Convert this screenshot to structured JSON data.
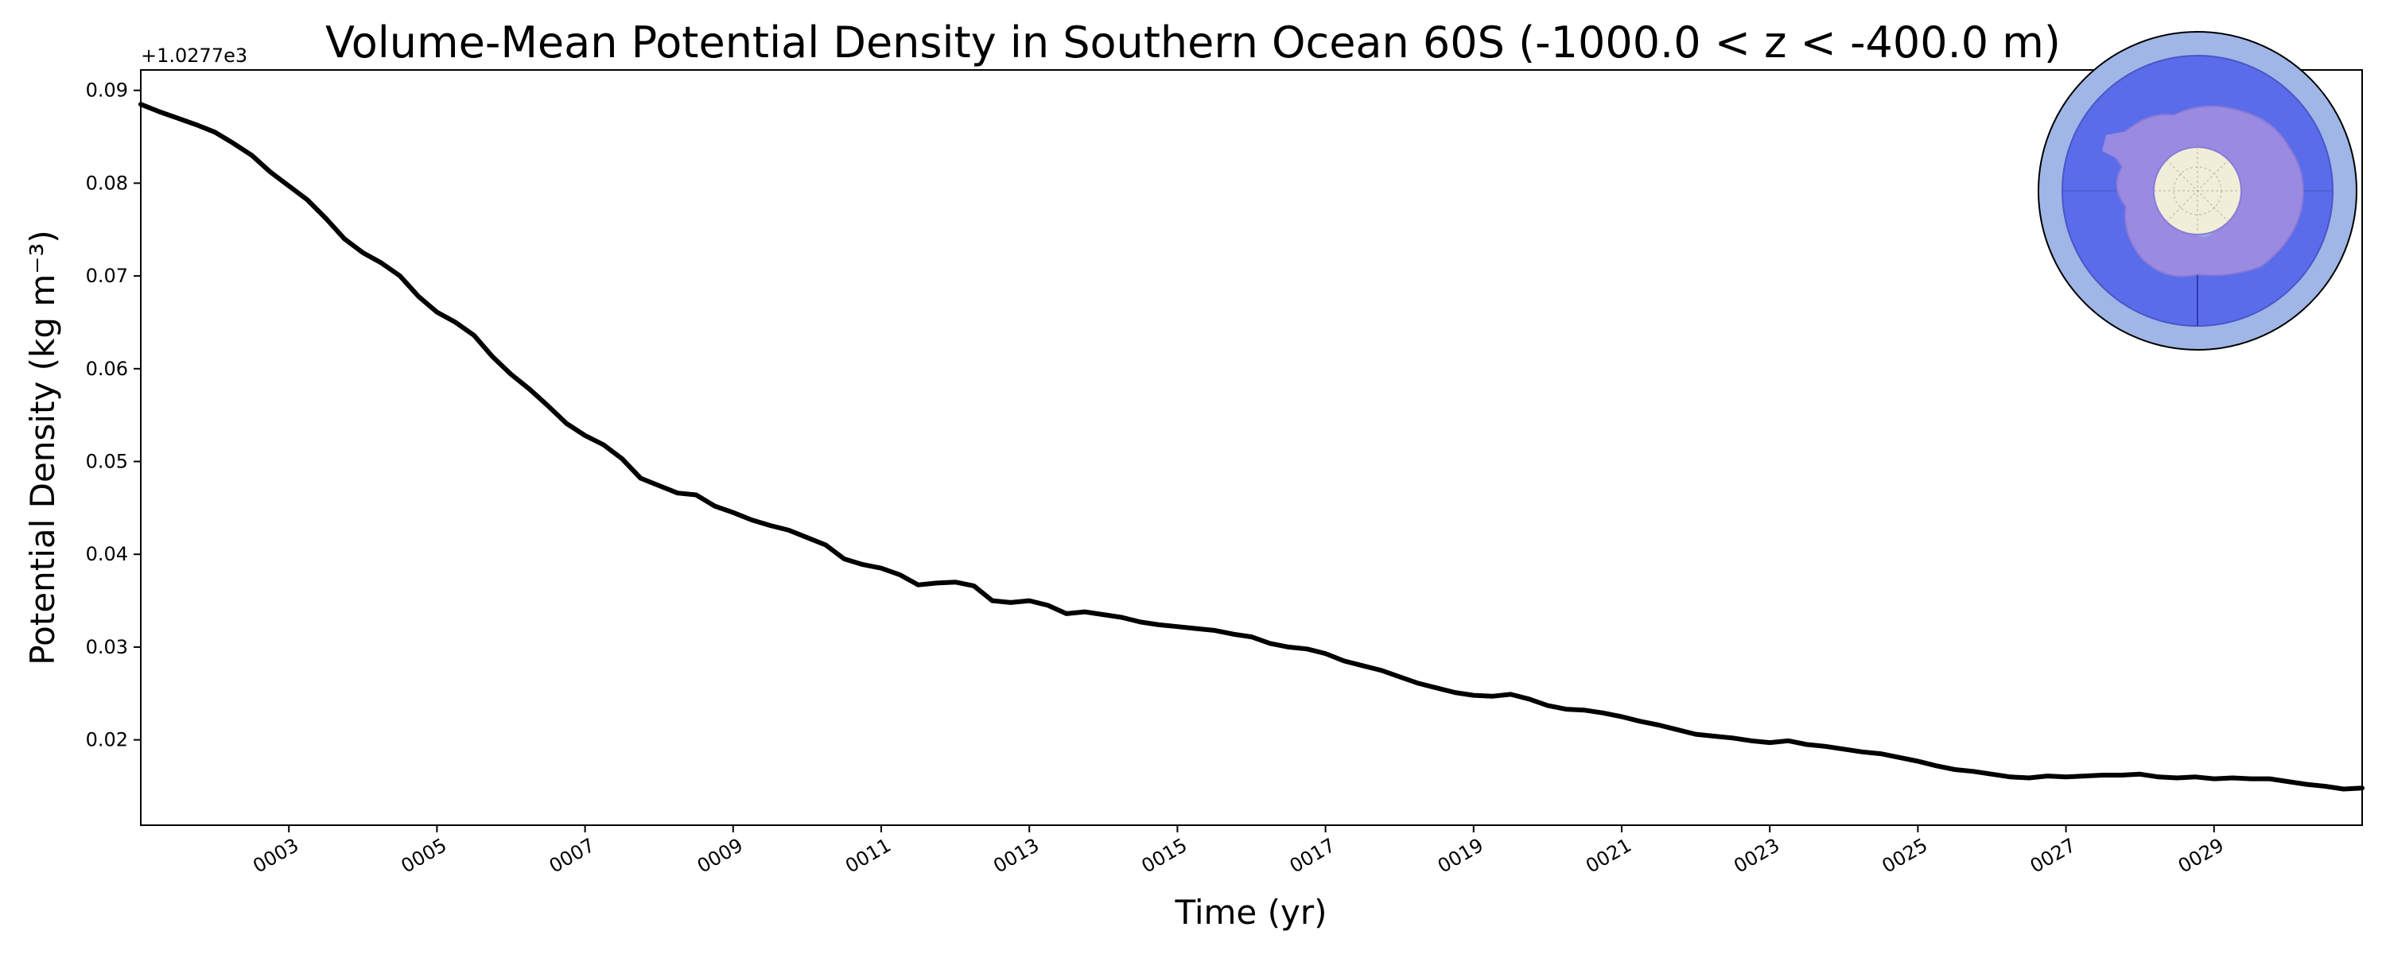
{
  "chart_data": {
    "type": "line",
    "title": "Volume-Mean Potential Density in Southern Ocean 60S (-1000.0 < z < -400.0 m)",
    "xlabel": "Time (yr)",
    "ylabel": "Potential Density (kg m⁻³)",
    "y_offset_label": "+1.0277e3",
    "xlim": [
      1.0,
      31.0
    ],
    "ylim": [
      0.0108,
      0.0922
    ],
    "x_ticks": [
      3,
      5,
      7,
      9,
      11,
      13,
      15,
      17,
      19,
      21,
      23,
      25,
      27,
      29
    ],
    "x_tick_labels": [
      "0003",
      "0005",
      "0007",
      "0009",
      "0011",
      "0013",
      "0015",
      "0017",
      "0019",
      "0021",
      "0023",
      "0025",
      "0027",
      "0029"
    ],
    "y_ticks": [
      0.02,
      0.03,
      0.04,
      0.05,
      0.06,
      0.07,
      0.08,
      0.09
    ],
    "y_tick_labels": [
      "0.02",
      "0.03",
      "0.04",
      "0.05",
      "0.06",
      "0.07",
      "0.08",
      "0.09"
    ],
    "grid": false,
    "inset": "south-polar map of Antarctica showing the 60S region, top-right",
    "series": [
      {
        "name": "Volume-mean potential density",
        "color": "#000000",
        "x": [
          1.0,
          1.25,
          1.5,
          1.75,
          2.0,
          2.25,
          2.5,
          2.75,
          3.0,
          3.25,
          3.5,
          3.75,
          4.0,
          4.25,
          4.5,
          4.75,
          5.0,
          5.25,
          5.5,
          5.75,
          6.0,
          6.25,
          6.5,
          6.75,
          7.0,
          7.25,
          7.5,
          7.75,
          8.0,
          8.25,
          8.5,
          8.75,
          9.0,
          9.25,
          9.5,
          9.75,
          10.0,
          10.25,
          10.5,
          10.75,
          11.0,
          11.25,
          11.5,
          11.75,
          12.0,
          12.25,
          12.5,
          12.75,
          13.0,
          13.25,
          13.5,
          13.75,
          14.0,
          14.25,
          14.5,
          14.75,
          15.0,
          15.25,
          15.5,
          15.75,
          16.0,
          16.25,
          16.5,
          16.75,
          17.0,
          17.25,
          17.5,
          17.75,
          18.0,
          18.25,
          18.5,
          18.75,
          19.0,
          19.25,
          19.5,
          19.75,
          20.0,
          20.25,
          20.5,
          20.75,
          21.0,
          21.25,
          21.5,
          21.75,
          22.0,
          22.25,
          22.5,
          22.75,
          23.0,
          23.25,
          23.5,
          23.75,
          24.0,
          24.25,
          24.5,
          24.75,
          25.0,
          25.25,
          25.5,
          25.75,
          26.0,
          26.25,
          26.5,
          26.75,
          27.0,
          27.25,
          27.5,
          27.75,
          28.0,
          28.25,
          28.5,
          28.75,
          29.0,
          29.25,
          29.5,
          29.75,
          30.0,
          30.25,
          30.5,
          30.75,
          31.0
        ],
        "y": [
          0.0885,
          0.0877,
          0.087,
          0.0863,
          0.0855,
          0.0843,
          0.083,
          0.0812,
          0.0797,
          0.0782,
          0.0762,
          0.074,
          0.0725,
          0.0714,
          0.07,
          0.0678,
          0.0661,
          0.065,
          0.0636,
          0.0613,
          0.0594,
          0.0578,
          0.056,
          0.0541,
          0.0528,
          0.0518,
          0.0503,
          0.0482,
          0.0474,
          0.0466,
          0.0464,
          0.0452,
          0.0445,
          0.0437,
          0.0431,
          0.0426,
          0.0418,
          0.041,
          0.0395,
          0.0389,
          0.0385,
          0.0378,
          0.0367,
          0.0369,
          0.037,
          0.0366,
          0.035,
          0.0348,
          0.035,
          0.0345,
          0.0336,
          0.0338,
          0.0335,
          0.0332,
          0.0327,
          0.0324,
          0.0322,
          0.032,
          0.0318,
          0.0314,
          0.0311,
          0.0304,
          0.03,
          0.0298,
          0.0293,
          0.0285,
          0.028,
          0.0275,
          0.0268,
          0.0261,
          0.0256,
          0.0251,
          0.0248,
          0.0247,
          0.0249,
          0.0244,
          0.0237,
          0.0233,
          0.0232,
          0.0229,
          0.0225,
          0.022,
          0.0216,
          0.0211,
          0.0206,
          0.0204,
          0.0202,
          0.0199,
          0.0197,
          0.0199,
          0.0195,
          0.0193,
          0.019,
          0.0187,
          0.0185,
          0.0181,
          0.0177,
          0.0172,
          0.0168,
          0.0166,
          0.0163,
          0.016,
          0.0159,
          0.0161,
          0.016,
          0.0161,
          0.0162,
          0.0162,
          0.0163,
          0.016,
          0.0159,
          0.016,
          0.0158,
          0.0159,
          0.0158,
          0.0158,
          0.0155,
          0.0152,
          0.015,
          0.0147,
          0.0148
        ]
      }
    ]
  }
}
